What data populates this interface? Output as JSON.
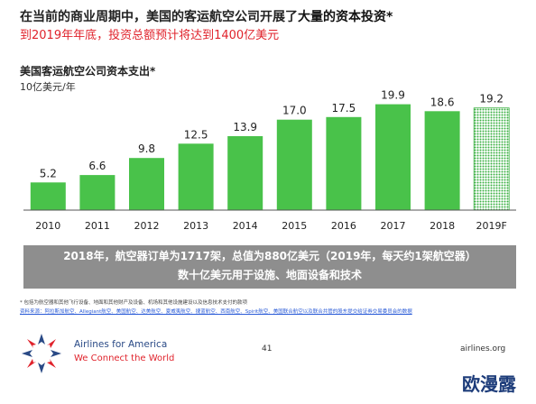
{
  "header": {
    "title_part1": "在当前的商业周期中，美国的客运航空公司",
    "title_part2": "开展了",
    "title_part3": "大量的资本投资*",
    "subtitle": "到2019年年底，投资总额预计将达到1400亿美元"
  },
  "chart_data": {
    "type": "bar",
    "title": "美国客运航空公司资本支出*",
    "ylabel": "10亿美元/年",
    "xlabel": "",
    "categories": [
      "2010",
      "2011",
      "2012",
      "2013",
      "2014",
      "2015",
      "2016",
      "2017",
      "2018",
      "2019F"
    ],
    "values": [
      5.2,
      6.6,
      9.8,
      12.5,
      13.9,
      17.0,
      17.5,
      19.9,
      18.6,
      19.2
    ],
    "value_labels": [
      "5.2",
      "6.6",
      "9.8",
      "12.5",
      "13.9",
      "17.0",
      "17.5",
      "19.9",
      "18.6",
      "19.2"
    ],
    "forecast_index": 9,
    "ylim": [
      0,
      20
    ],
    "grid": false,
    "colors": {
      "bar": "#49c24a",
      "forecast_pattern": "#3cb043",
      "axis": "#555555"
    }
  },
  "banner": {
    "line1": "2018年，航空器订单为1717架，总值为880亿美元（2019年，每天约1架航空器）",
    "line2": "数十亿美元用于设施、地面设备和技术"
  },
  "footnote": "* 包括为航空器和其他飞行设备、地面和其他财产及设备、机场和其他设施建设以及信息技术支付的款项",
  "sources": "资料来源：阿拉斯加航空、Allegiant航空、美国航空、达美航空、夏威夷航空、捷蓝航空、西南航空、Spirit航空、美国联合航空以及联合共管的股东提交给证券交易委员会的数据",
  "footer": {
    "brand": "Airlines for America",
    "tagline": "We Connect the World",
    "page_number": "41",
    "website": "airlines.org"
  },
  "watermark": "欧漫露"
}
